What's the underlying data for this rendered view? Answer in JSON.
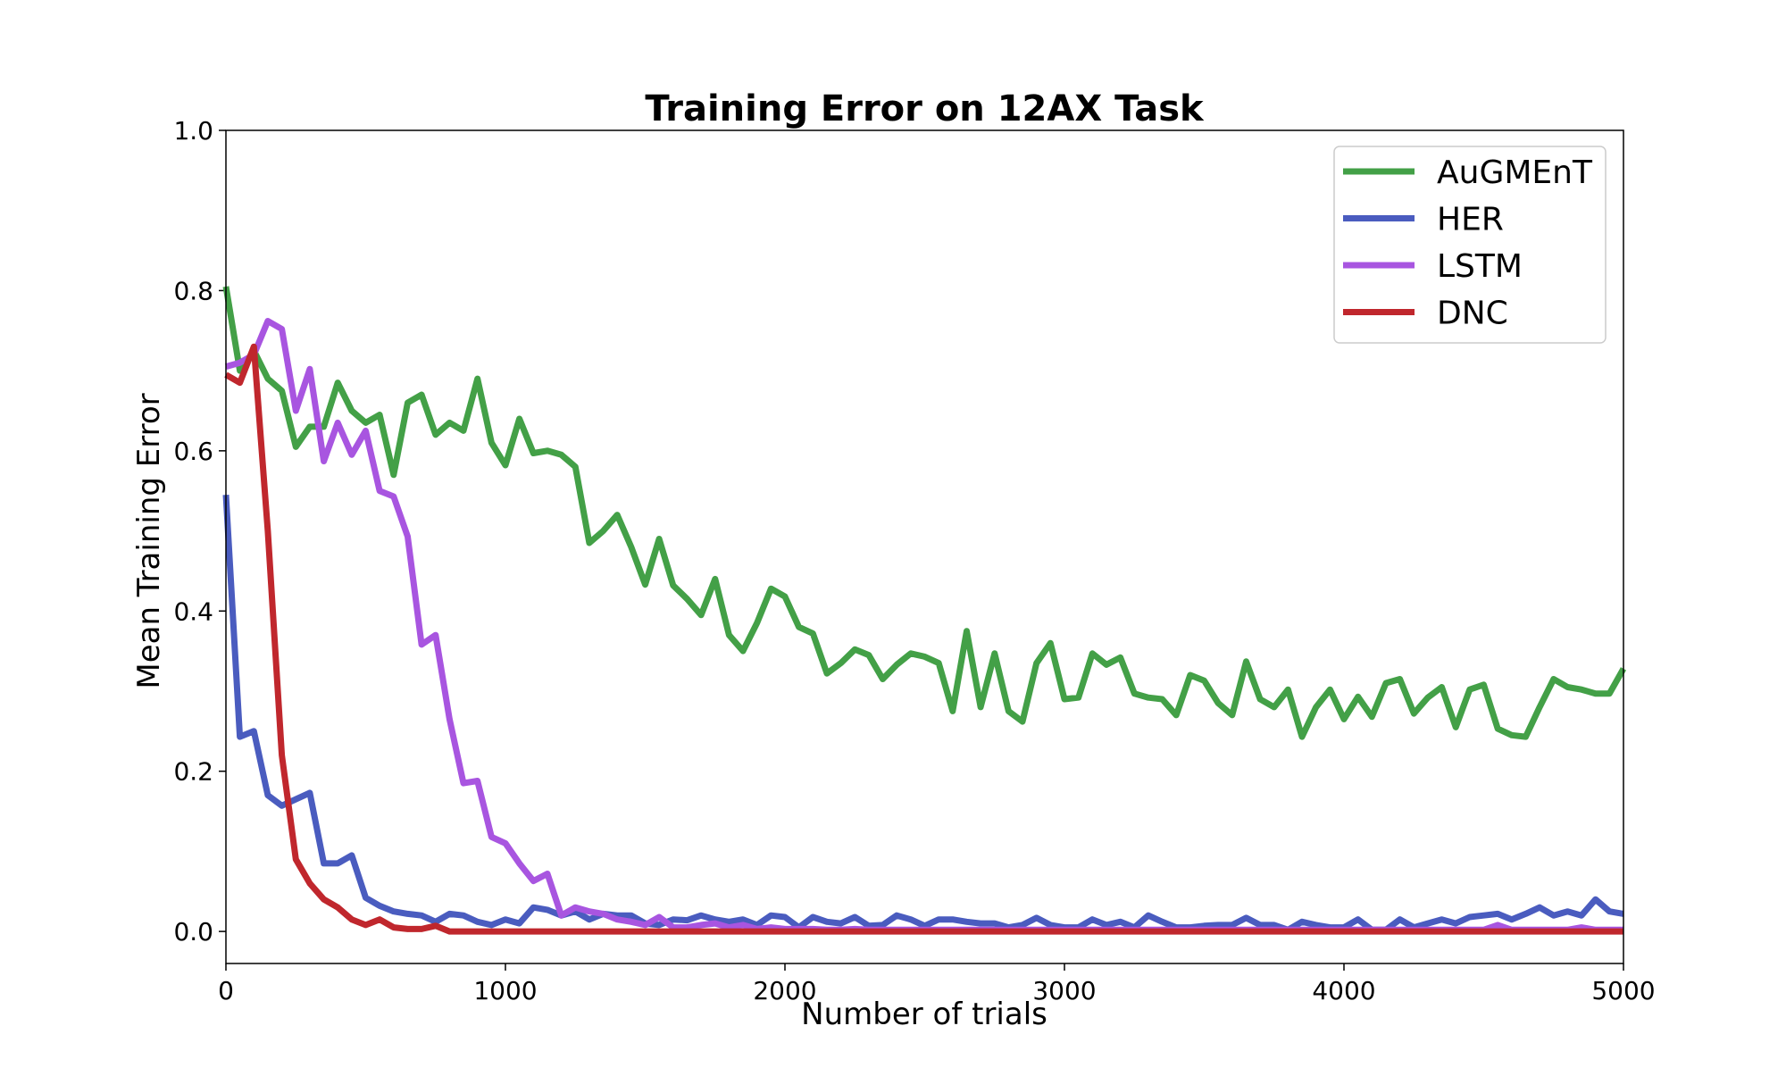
{
  "chart_data": {
    "type": "line",
    "title": "Training Error on 12AX Task",
    "xlabel": "Number of trials",
    "ylabel": "Mean Training Error",
    "xlim": [
      0,
      5000
    ],
    "ylim": [
      -0.04,
      1.0
    ],
    "xticks": [
      "0",
      "1000",
      "2000",
      "3000",
      "4000",
      "5000"
    ],
    "yticks": [
      "0.0",
      "0.2",
      "0.4",
      "0.6",
      "0.8",
      "1.0"
    ],
    "grid": false,
    "legend_position": "top-right",
    "x": [
      0,
      50,
      100,
      150,
      200,
      250,
      300,
      350,
      400,
      450,
      500,
      550,
      600,
      650,
      700,
      750,
      800,
      850,
      900,
      950,
      1000,
      1050,
      1100,
      1150,
      1200,
      1250,
      1300,
      1350,
      1400,
      1450,
      1500,
      1550,
      1600,
      1650,
      1700,
      1750,
      1800,
      1850,
      1900,
      1950,
      2000,
      2050,
      2100,
      2150,
      2200,
      2250,
      2300,
      2350,
      2400,
      2450,
      2500,
      2550,
      2600,
      2650,
      2700,
      2750,
      2800,
      2850,
      2900,
      2950,
      3000,
      3050,
      3100,
      3150,
      3200,
      3250,
      3300,
      3350,
      3400,
      3450,
      3500,
      3550,
      3600,
      3650,
      3700,
      3750,
      3800,
      3850,
      3900,
      3950,
      4000,
      4050,
      4100,
      4150,
      4200,
      4250,
      4300,
      4350,
      4400,
      4450,
      4500,
      4550,
      4600,
      4650,
      4700,
      4750,
      4800,
      4850,
      4900,
      4950,
      5000
    ],
    "series": [
      {
        "name": "AuGMEnT",
        "color": "#43a047",
        "values": [
          0.805,
          0.7,
          0.725,
          0.69,
          0.675,
          0.605,
          0.63,
          0.63,
          0.685,
          0.65,
          0.635,
          0.645,
          0.57,
          0.66,
          0.67,
          0.62,
          0.635,
          0.625,
          0.69,
          0.61,
          0.582,
          0.64,
          0.597,
          0.6,
          0.595,
          0.58,
          0.485,
          0.5,
          0.52,
          0.48,
          0.433,
          0.49,
          0.432,
          0.415,
          0.395,
          0.44,
          0.37,
          0.35,
          0.385,
          0.428,
          0.418,
          0.38,
          0.372,
          0.322,
          0.335,
          0.352,
          0.345,
          0.315,
          0.333,
          0.347,
          0.343,
          0.335,
          0.275,
          0.375,
          0.28,
          0.347,
          0.275,
          0.262,
          0.335,
          0.36,
          0.29,
          0.292,
          0.347,
          0.333,
          0.342,
          0.297,
          0.292,
          0.29,
          0.27,
          0.32,
          0.313,
          0.285,
          0.27,
          0.337,
          0.29,
          0.28,
          0.302,
          0.243,
          0.28,
          0.302,
          0.265,
          0.293,
          0.268,
          0.31,
          0.315,
          0.272,
          0.292,
          0.305,
          0.255,
          0.302,
          0.308,
          0.253,
          0.245,
          0.243,
          0.28,
          0.315,
          0.305,
          0.302,
          0.297,
          0.297,
          0.328
        ]
      },
      {
        "name": "HER",
        "color": "#4a5cbf",
        "values": [
          0.545,
          0.243,
          0.25,
          0.17,
          0.157,
          0.165,
          0.173,
          0.085,
          0.085,
          0.095,
          0.042,
          0.032,
          0.025,
          0.022,
          0.02,
          0.012,
          0.022,
          0.02,
          0.012,
          0.008,
          0.015,
          0.01,
          0.03,
          0.027,
          0.02,
          0.025,
          0.015,
          0.022,
          0.02,
          0.02,
          0.01,
          0.008,
          0.015,
          0.014,
          0.02,
          0.015,
          0.012,
          0.015,
          0.008,
          0.02,
          0.018,
          0.005,
          0.018,
          0.012,
          0.01,
          0.018,
          0.007,
          0.008,
          0.02,
          0.015,
          0.007,
          0.015,
          0.015,
          0.012,
          0.01,
          0.01,
          0.005,
          0.008,
          0.017,
          0.008,
          0.005,
          0.005,
          0.015,
          0.008,
          0.012,
          0.005,
          0.02,
          0.012,
          0.005,
          0.005,
          0.007,
          0.008,
          0.008,
          0.017,
          0.008,
          0.008,
          0.002,
          0.012,
          0.008,
          0.005,
          0.005,
          0.015,
          0.002,
          0.002,
          0.015,
          0.005,
          0.01,
          0.015,
          0.01,
          0.018,
          0.02,
          0.022,
          0.015,
          0.022,
          0.03,
          0.02,
          0.025,
          0.02,
          0.04,
          0.025,
          0.022
        ]
      },
      {
        "name": "LSTM",
        "color": "#a855e0",
        "values": [
          0.705,
          0.71,
          0.72,
          0.762,
          0.752,
          0.65,
          0.702,
          0.587,
          0.635,
          0.595,
          0.625,
          0.55,
          0.543,
          0.493,
          0.358,
          0.37,
          0.265,
          0.185,
          0.188,
          0.118,
          0.11,
          0.085,
          0.063,
          0.072,
          0.02,
          0.03,
          0.025,
          0.022,
          0.015,
          0.012,
          0.008,
          0.018,
          0.005,
          0.005,
          0.008,
          0.01,
          0.005,
          0.008,
          0.003,
          0.005,
          0.003,
          0.003,
          0.003,
          0.002,
          0.002,
          0.003,
          0.002,
          0.002,
          0.002,
          0.002,
          0.002,
          0.002,
          0.002,
          0.002,
          0.002,
          0.002,
          0.002,
          0.002,
          0.002,
          0.002,
          0.002,
          0.002,
          0.002,
          0.002,
          0.002,
          0.002,
          0.002,
          0.002,
          0.002,
          0.002,
          0.002,
          0.002,
          0.002,
          0.002,
          0.002,
          0.002,
          0.002,
          0.002,
          0.002,
          0.002,
          0.002,
          0.002,
          0.002,
          0.002,
          0.002,
          0.002,
          0.002,
          0.002,
          0.002,
          0.002,
          0.002,
          0.008,
          0.002,
          0.002,
          0.002,
          0.002,
          0.002,
          0.005,
          0.002,
          0.002,
          0.002
        ]
      },
      {
        "name": "DNC",
        "color": "#c0272d",
        "values": [
          0.695,
          0.685,
          0.73,
          0.5,
          0.22,
          0.09,
          0.06,
          0.04,
          0.03,
          0.015,
          0.008,
          0.015,
          0.005,
          0.003,
          0.003,
          0.007,
          0.0,
          0.0,
          0.0,
          0.0,
          0.0,
          0.0,
          0.0,
          0.0,
          0.0,
          0.0,
          0.0,
          0.0,
          0.0,
          0.0,
          0.0,
          0.0,
          0.0,
          0.0,
          0.0,
          0.0,
          0.0,
          0.0,
          0.0,
          0.0,
          0.0,
          0.0,
          0.0,
          0.0,
          0.0,
          0.0,
          0.0,
          0.0,
          0.0,
          0.0,
          0.0,
          0.0,
          0.0,
          0.0,
          0.0,
          0.0,
          0.0,
          0.0,
          0.0,
          0.0,
          0.0,
          0.0,
          0.0,
          0.0,
          0.0,
          0.0,
          0.0,
          0.0,
          0.0,
          0.0,
          0.0,
          0.0,
          0.0,
          0.0,
          0.0,
          0.0,
          0.0,
          0.0,
          0.0,
          0.0,
          0.0,
          0.0,
          0.0,
          0.0,
          0.0,
          0.0,
          0.0,
          0.0,
          0.0,
          0.0,
          0.0,
          0.0,
          0.0,
          0.0,
          0.0,
          0.0,
          0.0,
          0.0,
          0.0,
          0.0,
          0.0
        ]
      }
    ]
  }
}
